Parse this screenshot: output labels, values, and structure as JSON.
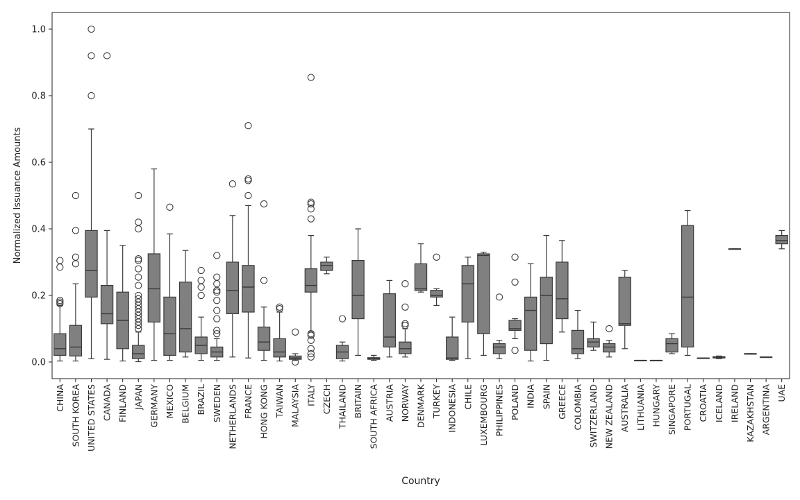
{
  "chart_data": {
    "type": "box",
    "title": "",
    "xlabel": "Country",
    "ylabel": "Normalized Issuance Amounts",
    "ylim": [
      -0.05,
      1.05
    ],
    "yticks": [
      0.0,
      0.2,
      0.4,
      0.6,
      0.8,
      1.0
    ],
    "ytick_labels": [
      "0.0",
      "0.2",
      "0.4",
      "0.6",
      "0.8",
      "1.0"
    ],
    "grid": false,
    "legend": "none",
    "box_color": "#808080",
    "line_color": "#3a3a3a",
    "categories": [
      "CHINA",
      "SOUTH KOREA",
      "UNITED STATES",
      "CANADA",
      "FINLAND",
      "JAPAN",
      "GERMANY",
      "MEXICO",
      "BELGIUM",
      "BRAZIL",
      "SWEDEN",
      "NETHERLANDS",
      "FRANCE",
      "HONG KONG",
      "TAIWAN",
      "MALAYSIA",
      "ITALY",
      "CZECH",
      "THAILAND",
      "BRITAIN",
      "SOUTH AFRICA",
      "AUSTRIA",
      "NORWAY",
      "DENMARK",
      "TURKEY",
      "INDONESIA",
      "CHILE",
      "LUXEMBOURG",
      "PHILIPPINES",
      "POLAND",
      "INDIA",
      "SPAIN",
      "GREECE",
      "COLOMBIA",
      "SWITZERLAND",
      "NEW ZEALAND",
      "AUSTRALIA",
      "LITHUANIA",
      "HUNGARY",
      "SINGAPORE",
      "PORTUGAL",
      "CROATIA",
      "ICELAND",
      "IRELAND",
      "KAZAKHSTAN",
      "ARGENTINA",
      "UAE"
    ],
    "boxes": [
      {
        "whislo": 0.003,
        "q1": 0.02,
        "med": 0.04,
        "q3": 0.085,
        "whishi": 0.17,
        "fliers": [
          0.175,
          0.18,
          0.185,
          0.285,
          0.305
        ]
      },
      {
        "whislo": 0.003,
        "q1": 0.018,
        "med": 0.045,
        "q3": 0.11,
        "whishi": 0.235,
        "fliers": [
          0.295,
          0.315,
          0.395,
          0.5
        ]
      },
      {
        "whislo": 0.01,
        "q1": 0.195,
        "med": 0.275,
        "q3": 0.395,
        "whishi": 0.7,
        "fliers": [
          0.8,
          0.92,
          1.0
        ]
      },
      {
        "whislo": 0.008,
        "q1": 0.115,
        "med": 0.145,
        "q3": 0.23,
        "whishi": 0.395,
        "fliers": [
          0.92
        ]
      },
      {
        "whislo": 0.003,
        "q1": 0.04,
        "med": 0.125,
        "q3": 0.21,
        "whishi": 0.35,
        "fliers": []
      },
      {
        "whislo": 0.001,
        "q1": 0.01,
        "med": 0.025,
        "q3": 0.05,
        "whishi": 0.09,
        "fliers": [
          0.1,
          0.11,
          0.12,
          0.13,
          0.14,
          0.15,
          0.16,
          0.17,
          0.18,
          0.19,
          0.2,
          0.23,
          0.255,
          0.28,
          0.305,
          0.31,
          0.4,
          0.42,
          0.5
        ]
      },
      {
        "whislo": 0.005,
        "q1": 0.12,
        "med": 0.22,
        "q3": 0.325,
        "whishi": 0.58,
        "fliers": []
      },
      {
        "whislo": 0.005,
        "q1": 0.02,
        "med": 0.085,
        "q3": 0.195,
        "whishi": 0.385,
        "fliers": [
          0.465
        ]
      },
      {
        "whislo": 0.015,
        "q1": 0.03,
        "med": 0.1,
        "q3": 0.24,
        "whishi": 0.335,
        "fliers": []
      },
      {
        "whislo": 0.005,
        "q1": 0.025,
        "med": 0.05,
        "q3": 0.075,
        "whishi": 0.135,
        "fliers": [
          0.2,
          0.225,
          0.245,
          0.275
        ]
      },
      {
        "whislo": 0.005,
        "q1": 0.015,
        "med": 0.03,
        "q3": 0.045,
        "whishi": 0.07,
        "fliers": [
          0.085,
          0.095,
          0.13,
          0.155,
          0.185,
          0.21,
          0.215,
          0.235,
          0.255,
          0.32
        ]
      },
      {
        "whislo": 0.015,
        "q1": 0.145,
        "med": 0.215,
        "q3": 0.3,
        "whishi": 0.44,
        "fliers": [
          0.535
        ]
      },
      {
        "whislo": 0.012,
        "q1": 0.15,
        "med": 0.225,
        "q3": 0.29,
        "whishi": 0.47,
        "fliers": [
          0.5,
          0.545,
          0.55,
          0.71
        ]
      },
      {
        "whislo": 0.005,
        "q1": 0.035,
        "med": 0.06,
        "q3": 0.105,
        "whishi": 0.165,
        "fliers": [
          0.245,
          0.475
        ]
      },
      {
        "whislo": 0.003,
        "q1": 0.015,
        "med": 0.03,
        "q3": 0.07,
        "whishi": 0.15,
        "fliers": [
          0.16,
          0.165
        ]
      },
      {
        "whislo": 0.005,
        "q1": 0.008,
        "med": 0.012,
        "q3": 0.018,
        "whishi": 0.025,
        "fliers": [
          0.0,
          0.09
        ]
      },
      {
        "whislo": 0.09,
        "q1": 0.21,
        "med": 0.23,
        "q3": 0.28,
        "whishi": 0.38,
        "fliers": [
          0.015,
          0.025,
          0.04,
          0.065,
          0.08,
          0.085,
          0.43,
          0.46,
          0.475,
          0.48,
          0.855
        ]
      },
      {
        "whislo": 0.265,
        "q1": 0.275,
        "med": 0.29,
        "q3": 0.3,
        "whishi": 0.315,
        "fliers": []
      },
      {
        "whislo": 0.003,
        "q1": 0.01,
        "med": 0.03,
        "q3": 0.05,
        "whishi": 0.06,
        "fliers": [
          0.13
        ]
      },
      {
        "whislo": 0.02,
        "q1": 0.13,
        "med": 0.2,
        "q3": 0.305,
        "whishi": 0.4,
        "fliers": []
      },
      {
        "whislo": 0.005,
        "q1": 0.008,
        "med": 0.01,
        "q3": 0.013,
        "whishi": 0.02,
        "fliers": []
      },
      {
        "whislo": 0.015,
        "q1": 0.045,
        "med": 0.075,
        "q3": 0.205,
        "whishi": 0.245,
        "fliers": []
      },
      {
        "whislo": 0.015,
        "q1": 0.025,
        "med": 0.04,
        "q3": 0.06,
        "whishi": 0.1,
        "fliers": [
          0.11,
          0.115,
          0.165,
          0.235
        ]
      },
      {
        "whislo": 0.21,
        "q1": 0.215,
        "med": 0.22,
        "q3": 0.295,
        "whishi": 0.355,
        "fliers": []
      },
      {
        "whislo": 0.17,
        "q1": 0.195,
        "med": 0.2,
        "q3": 0.215,
        "whishi": 0.22,
        "fliers": [
          0.315
        ]
      },
      {
        "whislo": 0.005,
        "q1": 0.008,
        "med": 0.012,
        "q3": 0.075,
        "whishi": 0.135,
        "fliers": []
      },
      {
        "whislo": 0.01,
        "q1": 0.12,
        "med": 0.235,
        "q3": 0.29,
        "whishi": 0.315,
        "fliers": []
      },
      {
        "whislo": 0.02,
        "q1": 0.085,
        "med": 0.32,
        "q3": 0.325,
        "whishi": 0.33,
        "fliers": []
      },
      {
        "whislo": 0.01,
        "q1": 0.025,
        "med": 0.045,
        "q3": 0.055,
        "whishi": 0.065,
        "fliers": [
          0.195
        ]
      },
      {
        "whislo": 0.07,
        "q1": 0.095,
        "med": 0.1,
        "q3": 0.125,
        "whishi": 0.13,
        "fliers": [
          0.035,
          0.24,
          0.315
        ]
      },
      {
        "whislo": 0.003,
        "q1": 0.035,
        "med": 0.155,
        "q3": 0.195,
        "whishi": 0.295,
        "fliers": []
      },
      {
        "whislo": 0.005,
        "q1": 0.055,
        "med": 0.2,
        "q3": 0.255,
        "whishi": 0.38,
        "fliers": []
      },
      {
        "whislo": 0.09,
        "q1": 0.13,
        "med": 0.19,
        "q3": 0.3,
        "whishi": 0.365,
        "fliers": []
      },
      {
        "whislo": 0.01,
        "q1": 0.025,
        "med": 0.04,
        "q3": 0.095,
        "whishi": 0.155,
        "fliers": []
      },
      {
        "whislo": 0.035,
        "q1": 0.045,
        "med": 0.06,
        "q3": 0.07,
        "whishi": 0.12,
        "fliers": []
      },
      {
        "whislo": 0.015,
        "q1": 0.03,
        "med": 0.045,
        "q3": 0.055,
        "whishi": 0.065,
        "fliers": [
          0.1
        ]
      },
      {
        "whislo": 0.04,
        "q1": 0.11,
        "med": 0.115,
        "q3": 0.255,
        "whishi": 0.275,
        "fliers": []
      },
      {
        "whislo": 0.005,
        "q1": 0.005,
        "med": 0.005,
        "q3": 0.005,
        "whishi": 0.005,
        "fliers": []
      },
      {
        "whislo": 0.005,
        "q1": 0.005,
        "med": 0.005,
        "q3": 0.005,
        "whishi": 0.005,
        "fliers": []
      },
      {
        "whislo": 0.025,
        "q1": 0.03,
        "med": 0.055,
        "q3": 0.07,
        "whishi": 0.085,
        "fliers": []
      },
      {
        "whislo": 0.02,
        "q1": 0.045,
        "med": 0.195,
        "q3": 0.41,
        "whishi": 0.455,
        "fliers": []
      },
      {
        "whislo": 0.012,
        "q1": 0.012,
        "med": 0.012,
        "q3": 0.012,
        "whishi": 0.012,
        "fliers": []
      },
      {
        "whislo": 0.01,
        "q1": 0.012,
        "med": 0.014,
        "q3": 0.016,
        "whishi": 0.018,
        "fliers": []
      },
      {
        "whislo": 0.34,
        "q1": 0.34,
        "med": 0.34,
        "q3": 0.34,
        "whishi": 0.34,
        "fliers": []
      },
      {
        "whislo": 0.025,
        "q1": 0.025,
        "med": 0.025,
        "q3": 0.025,
        "whishi": 0.025,
        "fliers": []
      },
      {
        "whislo": 0.015,
        "q1": 0.015,
        "med": 0.015,
        "q3": 0.015,
        "whishi": 0.015,
        "fliers": []
      },
      {
        "whislo": 0.34,
        "q1": 0.355,
        "med": 0.365,
        "q3": 0.38,
        "whishi": 0.395,
        "fliers": []
      }
    ]
  }
}
